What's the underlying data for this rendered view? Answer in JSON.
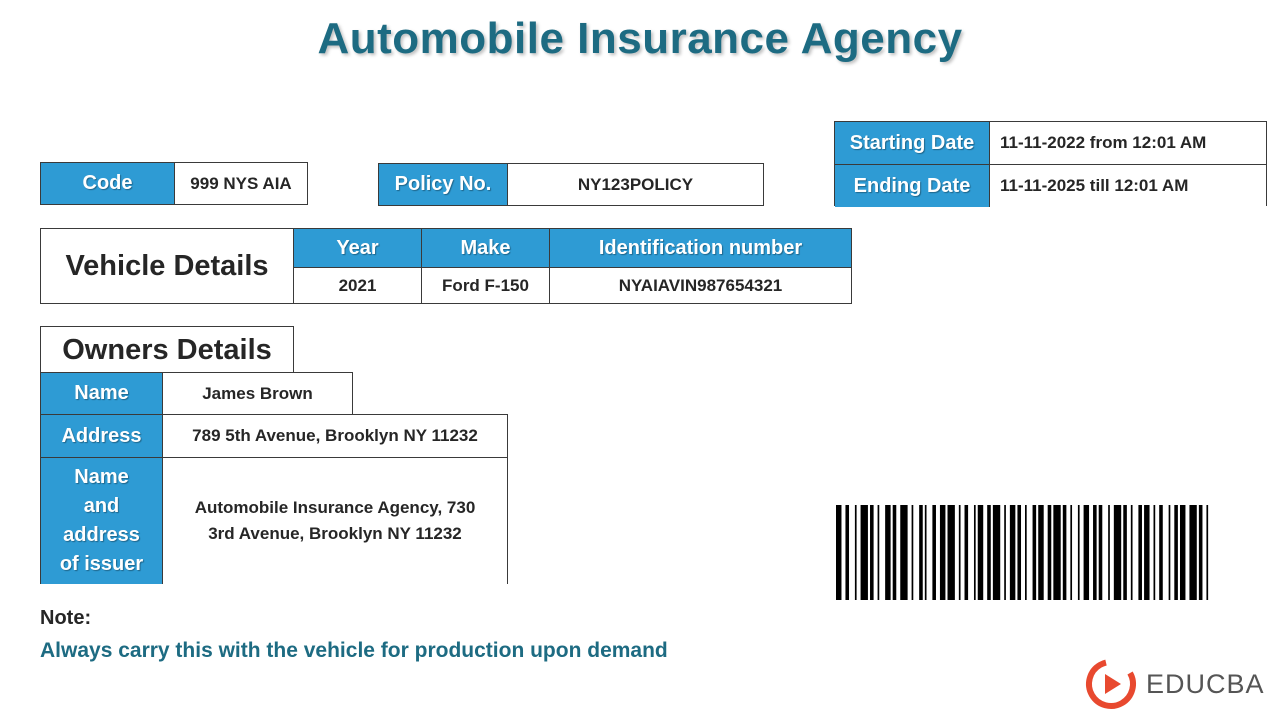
{
  "title": "Automobile Insurance Agency",
  "code": {
    "label": "Code",
    "value": "999 NYS AIA"
  },
  "policy": {
    "label": "Policy No.",
    "value": "NY123POLICY"
  },
  "dates": {
    "start_label": "Starting Date",
    "start_value": "11-11-2022 from 12:01 AM",
    "end_label": "Ending Date",
    "end_value": "11-11-2025 till 12:01 AM"
  },
  "vehicle": {
    "heading": "Vehicle Details",
    "columns": [
      "Year",
      "Make",
      "Identification number"
    ],
    "row": [
      "2021",
      "Ford F-150",
      "NYAIAVIN987654321"
    ]
  },
  "owner": {
    "heading": "Owners Details",
    "name_label": "Name",
    "name_value": "James Brown",
    "address_label": "Address",
    "address_value": "789 5th Avenue, Brooklyn NY 11232",
    "issuer_label_lines": [
      "Name",
      "and",
      "address",
      "of issuer"
    ],
    "issuer_value_lines": [
      "Automobile Insurance Agency, 730",
      "3rd Avenue, Brooklyn NY 11232"
    ]
  },
  "note": {
    "label": "Note:",
    "text": "Always carry this with the vehicle for production upon demand"
  },
  "brand": {
    "name": "EDUCBA",
    "logo_icon": "play-logo-icon",
    "accent": "#e8492f"
  },
  "colors": {
    "header_bg": "#2e9bd4",
    "title": "#1d6b82",
    "note": "#1d6b82"
  }
}
